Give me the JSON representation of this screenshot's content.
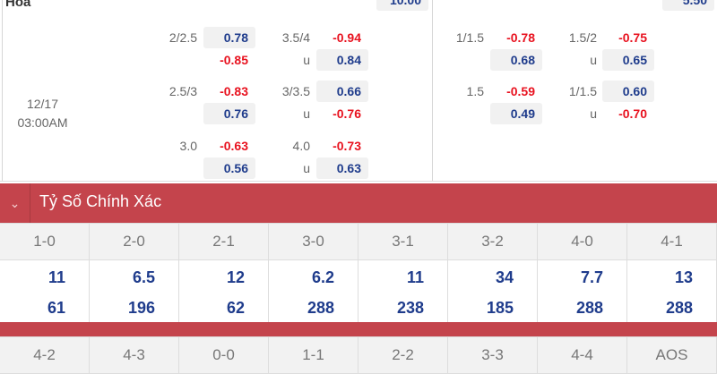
{
  "top": {
    "label": "Hòa",
    "left_value": "10.00",
    "right_value": "5.50"
  },
  "match_time": {
    "date": "12/17",
    "time": "03:00AM"
  },
  "left_odds": [
    {
      "line1": "2/2.5",
      "v1": "0.78",
      "v2": "-0.85",
      "line2": "3.5/4",
      "v3": "-0.94",
      "u": "u",
      "v4": "0.84"
    },
    {
      "line1": "2.5/3",
      "v1": "-0.83",
      "v2": "0.76",
      "line2": "3/3.5",
      "v3": "0.66",
      "u": "u",
      "v4": "-0.76"
    },
    {
      "line1": "3.0",
      "v1": "-0.63",
      "v2": "0.56",
      "line2": "4.0",
      "v3": "-0.73",
      "u": "u",
      "v4": "0.63"
    }
  ],
  "right_odds": [
    {
      "line1": "1/1.5",
      "v1": "-0.78",
      "v2": "0.68",
      "line2": "1.5/2",
      "v3": "-0.75",
      "u": "u",
      "v4": "0.65"
    },
    {
      "line1": "1.5",
      "v1": "-0.59",
      "v2": "0.49",
      "line2": "1/1.5",
      "v3": "0.60",
      "u": "u",
      "v4": "-0.70"
    }
  ],
  "section": {
    "title": "Tỷ Số Chính Xác",
    "toggle_icon": "chevron-down-icon"
  },
  "scores1": [
    "1-0",
    "2-0",
    "2-1",
    "3-0",
    "3-1",
    "3-2",
    "4-0",
    "4-1"
  ],
  "odds1_a": [
    "11",
    "6.5",
    "12",
    "6.2",
    "11",
    "34",
    "7.7",
    "13"
  ],
  "odds1_b": [
    "61",
    "196",
    "62",
    "288",
    "238",
    "185",
    "288",
    "288"
  ],
  "scores2": [
    "4-2",
    "4-3",
    "0-0",
    "1-1",
    "2-2",
    "3-3",
    "4-4",
    "AOS"
  ],
  "colors": {
    "header_red": "#c4444c",
    "positive": "#1f3c8c",
    "negative": "#e8121f"
  }
}
